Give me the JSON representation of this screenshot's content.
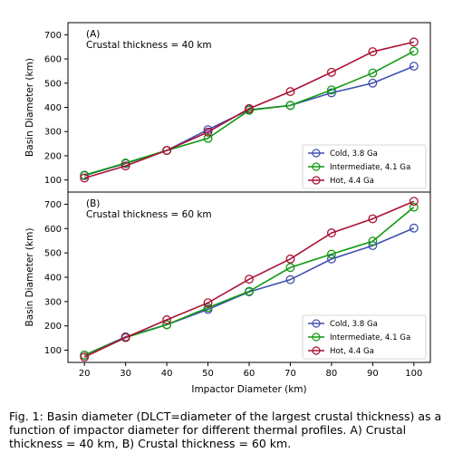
{
  "caption": "Fig. 1: Basin diameter (DLCT=diameter of the largest crustal thickness) as a function of impactor diameter for different thermal profiles. A) Crustal thickness = 40 km, B) Crustal thickness = 60 km.",
  "chart_data": [
    {
      "type": "line",
      "panel_label": "(A)",
      "annotation": "Crustal thickness = 40 km",
      "xlabel": "",
      "ylabel": "Basin Diameter (km)",
      "x": [
        20,
        30,
        40,
        50,
        60,
        70,
        80,
        90,
        100
      ],
      "xlim": [
        16,
        104
      ],
      "ylim": [
        50,
        750
      ],
      "yticks": [
        100,
        200,
        300,
        400,
        500,
        600,
        700
      ],
      "xticks": [],
      "legend_position": "bottom-right",
      "series": [
        {
          "name": "Cold, 3.8 Ga",
          "color": "#4050b0",
          "values": [
            118,
            168,
            222,
            308,
            390,
            408,
            460,
            500,
            570
          ]
        },
        {
          "name": "Intermediate, 4.1 Ga",
          "color": "#119911",
          "values": [
            120,
            170,
            222,
            272,
            388,
            408,
            472,
            542,
            632
          ]
        },
        {
          "name": "Hot, 4.4 Ga",
          "color": "#aa1133",
          "values": [
            108,
            158,
            222,
            298,
            395,
            465,
            545,
            630,
            670
          ]
        }
      ]
    },
    {
      "type": "line",
      "panel_label": "(B)",
      "annotation": "Crustal thickness = 60 km",
      "xlabel": "Impactor Diameter (km)",
      "ylabel": "Basin Diameter (km)",
      "x": [
        20,
        30,
        40,
        50,
        60,
        70,
        80,
        90,
        100
      ],
      "xlim": [
        16,
        104
      ],
      "ylim": [
        50,
        750
      ],
      "yticks": [
        100,
        200,
        300,
        400,
        500,
        600,
        700
      ],
      "xticks": [
        20,
        30,
        40,
        50,
        60,
        70,
        80,
        90,
        100
      ],
      "legend_position": "bottom-right",
      "series": [
        {
          "name": "Cold, 3.8 Ga",
          "color": "#4050b0",
          "values": [
            80,
            155,
            205,
            268,
            340,
            390,
            475,
            530,
            602
          ]
        },
        {
          "name": "Intermediate, 4.1 Ga",
          "color": "#119911",
          "values": [
            80,
            152,
            205,
            275,
            342,
            440,
            495,
            548,
            688
          ]
        },
        {
          "name": "Hot, 4.4 Ga",
          "color": "#aa1133",
          "values": [
            72,
            152,
            225,
            295,
            392,
            475,
            582,
            640,
            712
          ]
        }
      ]
    }
  ]
}
